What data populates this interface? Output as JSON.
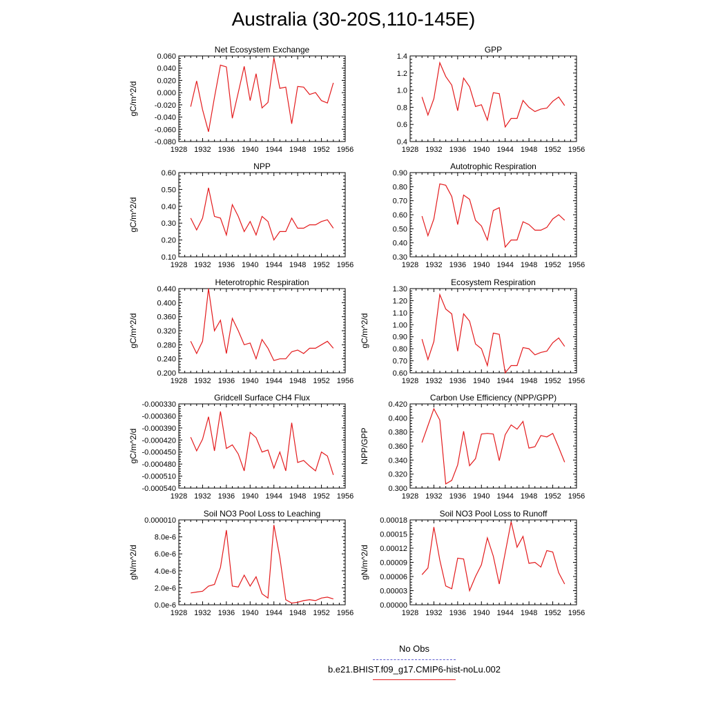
{
  "page": {
    "title": "Australia (30-20S,110-145E)"
  },
  "legend": {
    "items": [
      {
        "label": "No Obs",
        "color": "#5c5ccf",
        "style": "dashed"
      },
      {
        "label": "b.e21.BHIST.f09_g17.CMIP6-hist-noLu.002",
        "color": "#e31a1c",
        "style": "solid"
      }
    ]
  },
  "chart_data": [
    {
      "type": "line",
      "title": "Net Ecosystem Exchange",
      "ylabel": "gC/m^2/d",
      "xlim": [
        1928,
        1956
      ],
      "xticks": [
        1928,
        1932,
        1936,
        1940,
        1944,
        1948,
        1952,
        1956
      ],
      "ylim": [
        -0.08,
        0.06
      ],
      "yticks": [
        "-0.080",
        "-0.060",
        "-0.040",
        "-0.020",
        "0.000",
        "0.020",
        "0.040",
        "0.060"
      ],
      "series": [
        {
          "color": "#e31a1c",
          "x": [
            1930,
            1931,
            1932,
            1933,
            1934,
            1935,
            1936,
            1937,
            1938,
            1939,
            1940,
            1941,
            1942,
            1943,
            1944,
            1945,
            1946,
            1947,
            1948,
            1949,
            1950,
            1951,
            1952,
            1953,
            1954
          ],
          "values": [
            -0.023,
            0.019,
            -0.028,
            -0.064,
            -0.008,
            0.045,
            0.042,
            -0.042,
            0.0,
            0.043,
            -0.013,
            0.031,
            -0.025,
            -0.016,
            0.057,
            0.007,
            0.009,
            -0.051,
            0.01,
            0.009,
            -0.003,
            0.0,
            -0.013,
            -0.017,
            0.016
          ]
        }
      ]
    },
    {
      "type": "line",
      "title": "GPP",
      "ylabel": "",
      "xlim": [
        1928,
        1956
      ],
      "xticks": [
        1928,
        1932,
        1936,
        1940,
        1944,
        1948,
        1952,
        1956
      ],
      "ylim": [
        0.4,
        1.4
      ],
      "yticks": [
        "0.4",
        "0.6",
        "0.8",
        "1.0",
        "1.2",
        "1.4"
      ],
      "series": [
        {
          "color": "#e31a1c",
          "x": [
            1930,
            1931,
            1932,
            1933,
            1934,
            1935,
            1936,
            1937,
            1938,
            1939,
            1940,
            1941,
            1942,
            1943,
            1944,
            1945,
            1946,
            1947,
            1948,
            1949,
            1950,
            1951,
            1952,
            1953,
            1954
          ],
          "values": [
            0.92,
            0.71,
            0.9,
            1.32,
            1.16,
            1.06,
            0.76,
            1.14,
            1.04,
            0.81,
            0.83,
            0.65,
            0.97,
            0.96,
            0.57,
            0.67,
            0.67,
            0.88,
            0.8,
            0.75,
            0.78,
            0.79,
            0.87,
            0.92,
            0.82
          ]
        }
      ]
    },
    {
      "type": "line",
      "title": "NPP",
      "ylabel": "gC/m^2/d",
      "xlim": [
        1928,
        1956
      ],
      "xticks": [
        1928,
        1932,
        1936,
        1940,
        1944,
        1948,
        1952,
        1956
      ],
      "ylim": [
        0.1,
        0.6
      ],
      "yticks": [
        "0.10",
        "0.20",
        "0.30",
        "0.40",
        "0.50",
        "0.60"
      ],
      "series": [
        {
          "color": "#e31a1c",
          "x": [
            1930,
            1931,
            1932,
            1933,
            1934,
            1935,
            1936,
            1937,
            1938,
            1939,
            1940,
            1941,
            1942,
            1943,
            1944,
            1945,
            1946,
            1947,
            1948,
            1949,
            1950,
            1951,
            1952,
            1953,
            1954
          ],
          "values": [
            0.33,
            0.26,
            0.33,
            0.51,
            0.34,
            0.33,
            0.23,
            0.41,
            0.34,
            0.25,
            0.31,
            0.23,
            0.34,
            0.31,
            0.2,
            0.25,
            0.25,
            0.33,
            0.27,
            0.27,
            0.29,
            0.29,
            0.31,
            0.32,
            0.27
          ]
        }
      ]
    },
    {
      "type": "line",
      "title": "Autotrophic Respiration",
      "ylabel": "",
      "xlim": [
        1928,
        1956
      ],
      "xticks": [
        1928,
        1932,
        1936,
        1940,
        1944,
        1948,
        1952,
        1956
      ],
      "ylim": [
        0.3,
        0.9
      ],
      "yticks": [
        "0.30",
        "0.40",
        "0.50",
        "0.60",
        "0.70",
        "0.80",
        "0.90"
      ],
      "series": [
        {
          "color": "#e31a1c",
          "x": [
            1930,
            1931,
            1932,
            1933,
            1934,
            1935,
            1936,
            1937,
            1938,
            1939,
            1940,
            1941,
            1942,
            1943,
            1944,
            1945,
            1946,
            1947,
            1948,
            1949,
            1950,
            1951,
            1952,
            1953,
            1954
          ],
          "values": [
            0.59,
            0.45,
            0.57,
            0.82,
            0.81,
            0.73,
            0.53,
            0.74,
            0.71,
            0.56,
            0.52,
            0.42,
            0.63,
            0.65,
            0.37,
            0.42,
            0.42,
            0.55,
            0.53,
            0.49,
            0.49,
            0.51,
            0.57,
            0.6,
            0.56
          ]
        }
      ]
    },
    {
      "type": "line",
      "title": "Heterotrophic Respiration",
      "ylabel": "gC/m^2/d",
      "xlim": [
        1928,
        1956
      ],
      "xticks": [
        1928,
        1932,
        1936,
        1940,
        1944,
        1948,
        1952,
        1956
      ],
      "ylim": [
        0.2,
        0.44
      ],
      "yticks": [
        "0.200",
        "0.240",
        "0.280",
        "0.320",
        "0.360",
        "0.400",
        "0.440"
      ],
      "series": [
        {
          "color": "#e31a1c",
          "x": [
            1930,
            1931,
            1932,
            1933,
            1934,
            1935,
            1936,
            1937,
            1938,
            1939,
            1940,
            1941,
            1942,
            1943,
            1944,
            1945,
            1946,
            1947,
            1948,
            1949,
            1950,
            1951,
            1952,
            1953,
            1954
          ],
          "values": [
            0.29,
            0.255,
            0.29,
            0.44,
            0.32,
            0.35,
            0.255,
            0.355,
            0.32,
            0.28,
            0.285,
            0.24,
            0.295,
            0.27,
            0.235,
            0.24,
            0.24,
            0.26,
            0.265,
            0.255,
            0.27,
            0.27,
            0.28,
            0.29,
            0.27
          ]
        }
      ]
    },
    {
      "type": "line",
      "title": "Ecosystem Respiration",
      "ylabel": "gC/m^2/d",
      "xlim": [
        1928,
        1956
      ],
      "xticks": [
        1928,
        1932,
        1936,
        1940,
        1944,
        1948,
        1952,
        1956
      ],
      "ylim": [
        0.6,
        1.3
      ],
      "yticks": [
        "0.60",
        "0.70",
        "0.80",
        "0.90",
        "1.00",
        "1.10",
        "1.20",
        "1.30"
      ],
      "series": [
        {
          "color": "#e31a1c",
          "x": [
            1930,
            1931,
            1932,
            1933,
            1934,
            1935,
            1936,
            1937,
            1938,
            1939,
            1940,
            1941,
            1942,
            1943,
            1944,
            1945,
            1946,
            1947,
            1948,
            1949,
            1950,
            1951,
            1952,
            1953,
            1954
          ],
          "values": [
            0.88,
            0.71,
            0.86,
            1.25,
            1.13,
            1.09,
            0.78,
            1.09,
            1.03,
            0.84,
            0.8,
            0.66,
            0.93,
            0.92,
            0.6,
            0.66,
            0.66,
            0.81,
            0.8,
            0.75,
            0.77,
            0.78,
            0.85,
            0.89,
            0.82
          ]
        }
      ]
    },
    {
      "type": "line",
      "title": "Gridcell Surface CH4 Flux",
      "ylabel": "gC/m^2/d",
      "xlim": [
        1928,
        1956
      ],
      "xticks": [
        1928,
        1932,
        1936,
        1940,
        1944,
        1948,
        1952,
        1956
      ],
      "ylim": [
        -0.00054,
        -0.00033
      ],
      "yticks": [
        "-0.000540",
        "-0.000510",
        "-0.000480",
        "-0.000450",
        "-0.000420",
        "-0.000390",
        "-0.000360",
        "-0.000330"
      ],
      "series": [
        {
          "color": "#e31a1c",
          "x": [
            1930,
            1931,
            1932,
            1933,
            1934,
            1935,
            1936,
            1937,
            1938,
            1939,
            1940,
            1941,
            1942,
            1943,
            1944,
            1945,
            1946,
            1947,
            1948,
            1949,
            1950,
            1951,
            1952,
            1953,
            1954
          ],
          "values": [
            -0.000413,
            -0.000447,
            -0.000418,
            -0.000362,
            -0.000447,
            -0.000349,
            -0.000441,
            -0.000432,
            -0.000455,
            -0.000497,
            -0.000401,
            -0.000414,
            -0.00045,
            -0.000445,
            -0.00049,
            -0.00045,
            -0.000497,
            -0.000377,
            -0.000476,
            -0.000471,
            -0.000485,
            -0.000497,
            -0.00045,
            -0.00046,
            -0.000507
          ]
        }
      ]
    },
    {
      "type": "line",
      "title": "Carbon Use Efficiency (NPP/GPP)",
      "ylabel": "NPP/GPP",
      "xlim": [
        1928,
        1956
      ],
      "xticks": [
        1928,
        1932,
        1936,
        1940,
        1944,
        1948,
        1952,
        1956
      ],
      "ylim": [
        0.3,
        0.42
      ],
      "yticks": [
        "0.300",
        "0.320",
        "0.340",
        "0.360",
        "0.380",
        "0.400",
        "0.420"
      ],
      "series": [
        {
          "color": "#e31a1c",
          "x": [
            1930,
            1931,
            1932,
            1933,
            1934,
            1935,
            1936,
            1937,
            1938,
            1939,
            1940,
            1941,
            1942,
            1943,
            1944,
            1945,
            1946,
            1947,
            1948,
            1949,
            1950,
            1951,
            1952,
            1953,
            1954
          ],
          "values": [
            0.365,
            0.389,
            0.413,
            0.397,
            0.306,
            0.311,
            0.333,
            0.381,
            0.332,
            0.342,
            0.377,
            0.378,
            0.377,
            0.339,
            0.376,
            0.39,
            0.384,
            0.395,
            0.357,
            0.359,
            0.375,
            0.373,
            0.378,
            0.358,
            0.337
          ]
        }
      ]
    },
    {
      "type": "line",
      "title": "Soil NO3 Pool Loss to Leaching",
      "ylabel": "gN/m^2/d",
      "xlim": [
        1928,
        1956
      ],
      "xticks": [
        1928,
        1932,
        1936,
        1940,
        1944,
        1948,
        1952,
        1956
      ],
      "ylim": [
        0,
        1e-05
      ],
      "ytick_values": [
        0,
        2e-06,
        4e-06,
        6e-06,
        8e-06,
        1e-05
      ],
      "yticks": [
        "0.0e-6",
        "2.0e-6",
        "4.0e-6",
        "6.0e-6",
        "8.0e-6",
        "0.000010"
      ],
      "series": [
        {
          "color": "#e31a1c",
          "x": [
            1930,
            1931,
            1932,
            1933,
            1934,
            1935,
            1936,
            1937,
            1938,
            1939,
            1940,
            1941,
            1942,
            1943,
            1944,
            1945,
            1946,
            1947,
            1948,
            1949,
            1950,
            1951,
            1952,
            1953,
            1954
          ],
          "values": [
            1.4e-06,
            1.5e-06,
            1.6e-06,
            2.2e-06,
            2.4e-06,
            4.4e-06,
            8.8e-06,
            2.2e-06,
            2.1e-06,
            3.5e-06,
            2.2e-06,
            3.3e-06,
            1.3e-06,
            8e-07,
            9.4e-06,
            5.6e-06,
            6e-07,
            2e-07,
            3e-07,
            5e-07,
            6e-07,
            5e-07,
            8e-07,
            9e-07,
            7e-07
          ]
        }
      ]
    },
    {
      "type": "line",
      "title": "Soil NO3 Pool Loss to Runoff",
      "ylabel": "gN/m^2/d",
      "xlim": [
        1928,
        1956
      ],
      "xticks": [
        1928,
        1932,
        1936,
        1940,
        1944,
        1948,
        1952,
        1956
      ],
      "ylim": [
        0,
        0.00018
      ],
      "ytick_values": [
        0,
        3e-05,
        6e-05,
        9e-05,
        0.00012,
        0.00015,
        0.00018
      ],
      "yticks": [
        "0.00000",
        "0.00003",
        "0.00006",
        "0.00009",
        "0.00012",
        "0.00015",
        "0.00018"
      ],
      "series": [
        {
          "color": "#e31a1c",
          "x": [
            1930,
            1931,
            1932,
            1933,
            1934,
            1935,
            1936,
            1937,
            1938,
            1939,
            1940,
            1941,
            1942,
            1943,
            1944,
            1945,
            1946,
            1947,
            1948,
            1949,
            1950,
            1951,
            1952,
            1953,
            1954
          ],
          "values": [
            6.4e-05,
            7.8e-05,
            0.000165,
            9.5e-05,
            4e-05,
            3.4e-05,
            9.9e-05,
            9.7e-05,
            3e-05,
            6e-05,
            8.5e-05,
            0.000142,
            0.000103,
            4.4e-05,
            0.00011,
            0.000176,
            0.000122,
            0.000145,
            8.8e-05,
            9e-05,
            8e-05,
            0.000115,
            0.000112,
            6.8e-05,
            4.4e-05
          ]
        }
      ]
    }
  ]
}
